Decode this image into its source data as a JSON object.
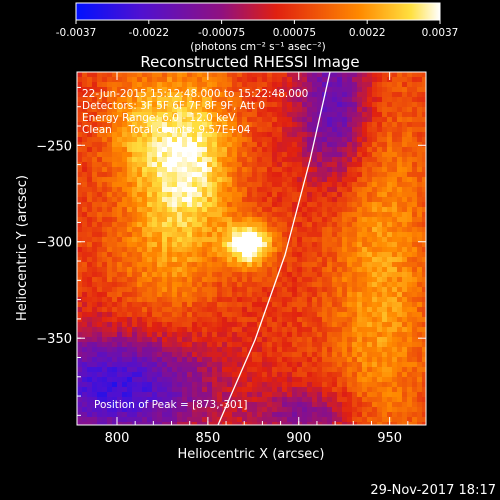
{
  "chart_data": {
    "type": "heatmap",
    "title": "Reconstructed RHESSI Image",
    "xlabel": "Heliocentric X (arcsec)",
    "ylabel": "Heliocentric Y (arcsec)",
    "xlim": [
      778,
      970
    ],
    "ylim": [
      -395,
      -212
    ],
    "x_ticks": [
      800,
      850,
      900,
      950
    ],
    "y_ticks": [
      -250,
      -300,
      -350
    ],
    "colorbar": {
      "units": "(photons cm⁻² s⁻¹ asec⁻²)",
      "tick_labels": [
        "-0.0037",
        "-0.0022",
        "-0.00075",
        "0.00075",
        "0.0022",
        "0.0037"
      ],
      "range": [
        -0.0037,
        0.0037
      ]
    },
    "annotations": [
      "22-Jun-2015 15:12:48.000 to 15:22:48.000",
      "Detectors: 3F 5F 6F 7F 8F 9F, Att 0",
      "Energy Range: 6.0 - 12.0 keV",
      "Clean     Total counts: 9.57E+04"
    ],
    "peak_label": "Position of Peak = [873,-301]",
    "peak": [
      873,
      -301
    ],
    "hot_regions": [
      {
        "x": 873,
        "y": -301,
        "value": 0.0037,
        "sx": 9,
        "sy": 8
      },
      {
        "x": 840,
        "y": -255,
        "value": 0.0026,
        "sx": 18,
        "sy": 30
      },
      {
        "x": 825,
        "y": -305,
        "value": 0.0012,
        "sx": 22,
        "sy": 35
      },
      {
        "x": 945,
        "y": -320,
        "value": 0.0016,
        "sx": 20,
        "sy": 70
      },
      {
        "x": 810,
        "y": -240,
        "value": 0.0012,
        "sx": 14,
        "sy": 20
      }
    ],
    "cold_regions": [
      {
        "x": 800,
        "y": -375,
        "value": -0.0035,
        "sx": 35,
        "sy": 20
      },
      {
        "x": 920,
        "y": -230,
        "value": -0.0028,
        "sx": 14,
        "sy": 28
      },
      {
        "x": 905,
        "y": -390,
        "value": -0.0018,
        "sx": 20,
        "sy": 10
      }
    ]
  },
  "timestamp": "29-Nov-2017 18:17"
}
